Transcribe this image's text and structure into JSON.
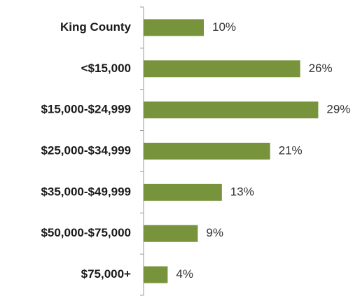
{
  "chart_data": {
    "type": "bar",
    "orientation": "horizontal",
    "categories": [
      "King County",
      "<$15,000",
      "$15,000-$24,999",
      "$25,000-$34,999",
      "$35,000-$49,999",
      "$50,000-$75,000",
      "$75,000+"
    ],
    "values": [
      10,
      26,
      29,
      21,
      13,
      9,
      4
    ],
    "value_labels": [
      "10%",
      "26%",
      "29%",
      "21%",
      "13%",
      "9%",
      "4%"
    ],
    "color": "#77933c"
  }
}
